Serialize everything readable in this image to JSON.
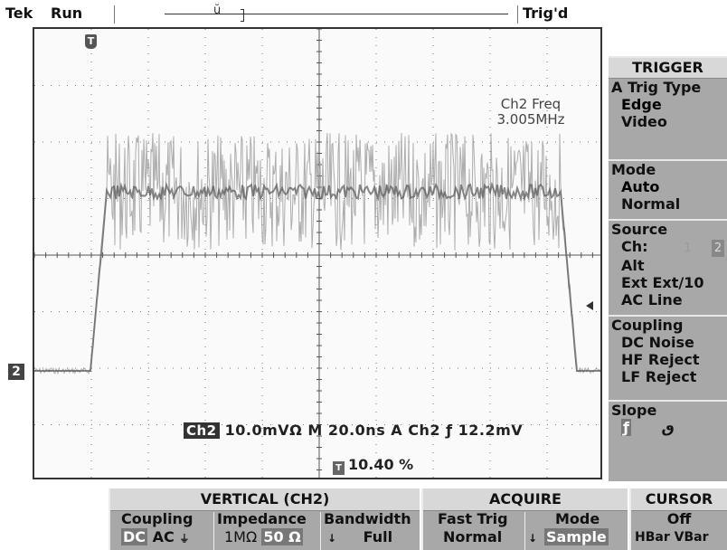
{
  "topbar": {
    "brand": "Tek",
    "status": "Run",
    "trigger_state": "Trig'd"
  },
  "screen": {
    "freq_label": "Ch2 Freq",
    "freq_value": "3.005MHz",
    "channel_badge": "Ch2",
    "readout": "10.0mVΩ M 20.0ns A Ch2 ",
    "slope_symbol": "ƒ",
    "trigger_level": "12.2mV",
    "pct_value": "10.40 %",
    "ch2_marker": "2",
    "trig_marker": "T"
  },
  "trigger_menu": {
    "header": "TRIGGER",
    "trig_type": {
      "title": "A Trig Type",
      "options": [
        "Edge",
        "Video"
      ]
    },
    "mode": {
      "title": "Mode",
      "options": [
        "Auto",
        "Normal"
      ]
    },
    "source": {
      "title": "Source",
      "ch_label": "Ch:",
      "ch1": "1",
      "ch2": "2",
      "options": [
        "Alt",
        "Ext  Ext/10",
        "AC Line"
      ]
    },
    "coupling": {
      "title": "Coupling",
      "options": [
        "DC    Noise",
        "HF Reject",
        "LF Reject"
      ]
    },
    "slope": {
      "title": "Slope",
      "rising": "ƒ",
      "falling": "ٯ"
    }
  },
  "vertical_menu": {
    "header": "VERTICAL (CH2)",
    "coupling_label": "Coupling",
    "coupling_dc": "DC",
    "coupling_ac": "AC",
    "coupling_gnd": "⏚",
    "impedance_label": "Impedance",
    "impedance_1m": "1MΩ",
    "impedance_50": "50 Ω",
    "bandwidth_label": "Bandwidth",
    "bandwidth_value": "Full"
  },
  "acquire_menu": {
    "header": "ACQUIRE",
    "fast_trig_label": "Fast Trig",
    "fast_trig_value": "Normal",
    "mode_label": "Mode",
    "mode_value": "Sample"
  },
  "cursor_menu": {
    "header": "CURSOR",
    "state": "Off",
    "options": "HBar VBar"
  },
  "colors": {
    "menu_bg": "#a8a8a8",
    "menu_header_bg": "#d8d8d8",
    "trace": "#9a9a9a",
    "trace_edge": "#555555"
  }
}
